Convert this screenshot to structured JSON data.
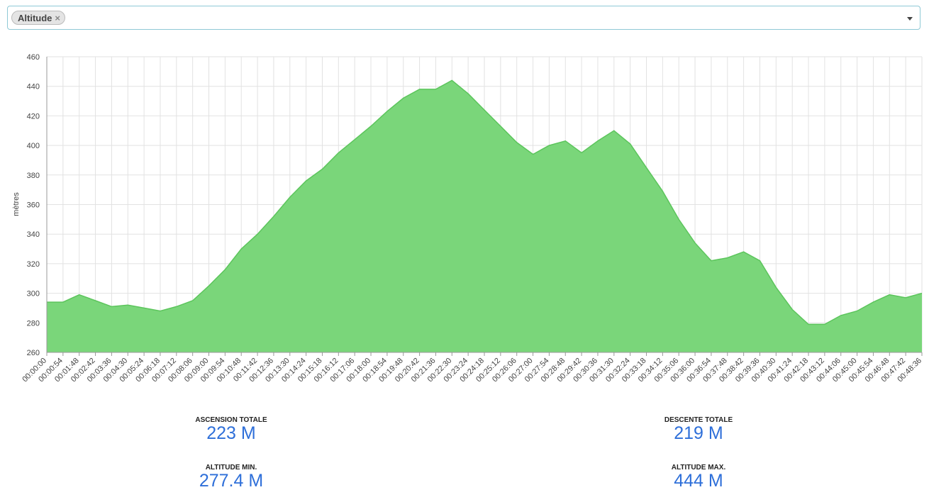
{
  "selector": {
    "tag": "Altitude",
    "remove": "×"
  },
  "chart_data": {
    "type": "area",
    "y_label": "mètres",
    "categories": [
      "00:00:00",
      "00:00:54",
      "00:01:48",
      "00:02:42",
      "00:03:36",
      "00:04:30",
      "00:05:24",
      "00:06:18",
      "00:07:12",
      "00:08:06",
      "00:09:00",
      "00:09:54",
      "00:10:48",
      "00:11:42",
      "00:12:36",
      "00:13:30",
      "00:14:24",
      "00:15:18",
      "00:16:12",
      "00:17:06",
      "00:18:00",
      "00:18:54",
      "00:19:48",
      "00:20:42",
      "00:21:36",
      "00:22:30",
      "00:23:24",
      "00:24:18",
      "00:25:12",
      "00:26:06",
      "00:27:00",
      "00:27:54",
      "00:28:48",
      "00:29:42",
      "00:30:36",
      "00:31:30",
      "00:32:24",
      "00:33:18",
      "00:34:12",
      "00:35:06",
      "00:36:00",
      "00:36:54",
      "00:37:48",
      "00:38:42",
      "00:39:36",
      "00:40:30",
      "00:41:24",
      "00:42:18",
      "00:43:12",
      "00:44:06",
      "00:45:00",
      "00:45:54",
      "00:46:48",
      "00:47:42",
      "00:48:36"
    ],
    "series": [
      {
        "color": "#7ad67a",
        "stroke": "#5cc55c",
        "values": [
          294,
          294,
          299,
          295,
          291,
          292,
          290,
          288,
          291,
          295,
          305,
          316,
          330,
          340,
          352,
          365,
          376,
          384,
          395,
          404,
          413,
          423,
          432,
          438,
          438,
          444,
          435,
          424,
          413,
          402,
          394,
          400,
          403,
          395,
          403,
          410,
          401,
          385,
          369,
          350,
          334,
          322,
          324,
          328,
          322,
          304,
          289,
          279,
          279,
          285,
          288,
          294,
          299,
          297,
          300
        ]
      }
    ],
    "ylim": [
      260,
      460
    ],
    "yticks": [
      260,
      280,
      300,
      320,
      340,
      360,
      380,
      400,
      420,
      440,
      460
    ],
    "grid": true
  },
  "stats": [
    {
      "label": "ASCENSION TOTALE",
      "value": "223 M"
    },
    {
      "label": "DESCENTE TOTALE",
      "value": "219 M"
    },
    {
      "label": "ALTITUDE MIN.",
      "value": "277.4 M"
    },
    {
      "label": "ALTITUDE MAX.",
      "value": "444 M"
    }
  ]
}
